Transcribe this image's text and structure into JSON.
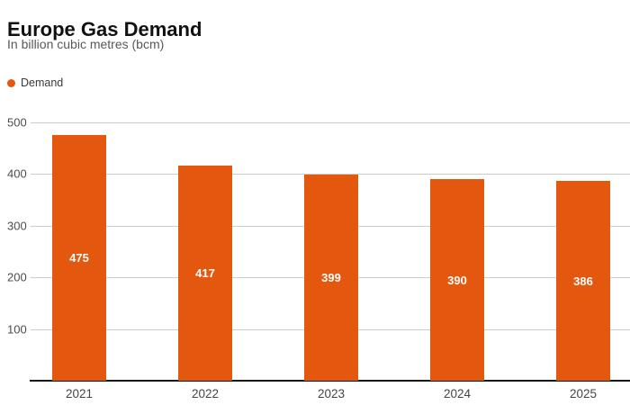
{
  "header": {
    "title": "Europe Gas Demand",
    "subtitle": "In billion cubic metres (bcm)"
  },
  "legend": {
    "label": "Demand"
  },
  "colors": {
    "bar": "#e4570e",
    "legend_dot": "#e4570e",
    "bar_value_text": "#ffffff",
    "gridline": "#cccccc",
    "axis_line": "#161616"
  },
  "chart_data": {
    "type": "bar",
    "title": "Europe Gas Demand",
    "subtitle": "In billion cubic metres (bcm)",
    "legend": [
      "Demand"
    ],
    "legend_position": "top-left",
    "categories": [
      "2021",
      "2022",
      "2023",
      "2024",
      "2025"
    ],
    "values": [
      475,
      417,
      399,
      390,
      386
    ],
    "data_labels": [
      "475",
      "417",
      "399",
      "390",
      "386"
    ],
    "xlabel": "",
    "ylabel": "",
    "ylim": [
      0,
      500
    ],
    "yticks": [
      100,
      200,
      300,
      400,
      500
    ],
    "grid": true
  }
}
